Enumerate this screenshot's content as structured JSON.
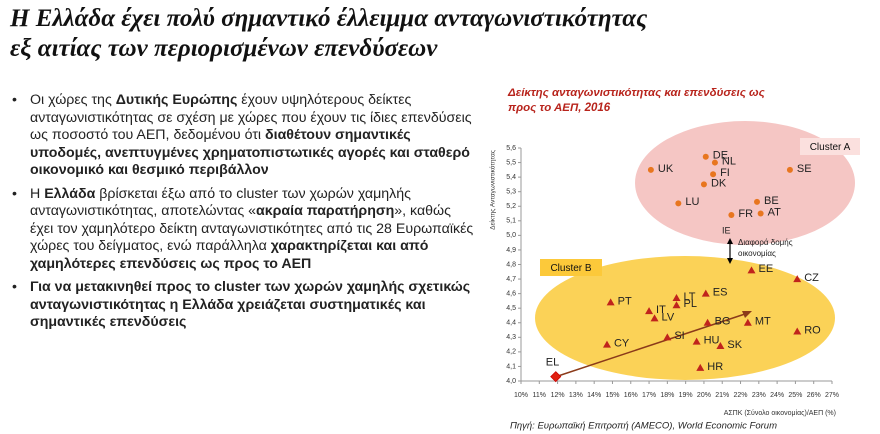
{
  "header": {
    "title": [
      "Η Ελλάδα έχει πολύ σημαντικό έλλειμμα ανταγωνιστικότητας",
      "εξ αιτίας των περιορισμένων επενδύσεων"
    ]
  },
  "bullets": [
    [
      {
        "text": "Οι χώρες της ",
        "bold": false
      },
      {
        "text": "Δυτικής Ευρώπης",
        "bold": true
      },
      {
        "text": " έχουν υψηλότερους δείκτες ανταγωνιστικότητας σε σχέση με χώρες που έχουν τις ίδιες επενδύσεις ως ποσοστό του ΑΕΠ, δεδομένου ότι ",
        "bold": false
      },
      {
        "text": "διαθέτουν σημαντικές υποδομές, ανεπτυγμένες χρηματοπιστωτικές αγορές και σταθερό οικονομικό και θεσμικό περιβάλλον",
        "bold": true
      }
    ],
    [
      {
        "text": "Η ",
        "bold": false
      },
      {
        "text": "Ελλάδα",
        "bold": true
      },
      {
        "text": " βρίσκεται έξω από το cluster των χωρών χαμηλής ανταγωνιστικότητας, αποτελώντας «",
        "bold": false
      },
      {
        "text": "ακραία παρατήρηση",
        "bold": true
      },
      {
        "text": "», καθώς έχει τον χαμηλότερο δείκτη ανταγωνιστικότητες από τις 28 Ευρωπαϊκές χώρες του δείγματος, ενώ παράλληλα ",
        "bold": false
      },
      {
        "text": "χαρακτηρίζεται και από χαμηλότερες επενδύσεις ως προς το ΑΕΠ",
        "bold": true
      }
    ],
    [
      {
        "text": "Για να μετακινηθεί προς το cluster των χωρών χαμηλής σχετικώς ανταγωνιστικότητας η Ελλάδα χρειάζεται συστηματικές και σημαντικές επενδύσεις",
        "bold": true
      }
    ]
  ],
  "chart_data": {
    "type": "scatter",
    "title": "Δείκτης ανταγωνιστικότητας και επενδύσεις ως προς το ΑΕΠ, 2016",
    "x_label": "ΑΣΠΚ (Σύνολο οικονομίας)/ΑΕΠ (%)",
    "y_label": "Δείκτης Ανταγωνιστικότητας",
    "source": "Πηγή: Ευρωπαϊκή Επιτροπή (AMECO), World Economic Forum",
    "annotations": {
      "ie": "IE",
      "gap": [
        "Διαφορά δομής",
        "οικονομίας"
      ]
    },
    "xlim": [
      10,
      27
    ],
    "xticks": [
      {
        "value": 10,
        "label": "10%"
      },
      {
        "value": 11,
        "label": "11%"
      },
      {
        "value": 12,
        "label": "12%"
      },
      {
        "value": 13,
        "label": "13%"
      },
      {
        "value": 14,
        "label": "14%"
      },
      {
        "value": 15,
        "label": "15%"
      },
      {
        "value": 16,
        "label": "16%"
      },
      {
        "value": 17,
        "label": "17%"
      },
      {
        "value": 18,
        "label": "18%"
      },
      {
        "value": 19,
        "label": "19%"
      },
      {
        "value": 20,
        "label": "20%"
      },
      {
        "value": 21,
        "label": "21%"
      },
      {
        "value": 22,
        "label": "22%"
      },
      {
        "value": 23,
        "label": "23%"
      },
      {
        "value": 24,
        "label": "24%"
      },
      {
        "value": 25,
        "label": "25%"
      },
      {
        "value": 26,
        "label": "26%"
      },
      {
        "value": 27,
        "label": "27%"
      }
    ],
    "ylim": [
      4.0,
      5.6
    ],
    "yticks": [
      {
        "value": 4.0,
        "label": "4,0"
      },
      {
        "value": 4.1,
        "label": "4,1"
      },
      {
        "value": 4.2,
        "label": "4,2"
      },
      {
        "value": 4.3,
        "label": "4,3"
      },
      {
        "value": 4.4,
        "label": "4,4"
      },
      {
        "value": 4.5,
        "label": "4,5"
      },
      {
        "value": 4.6,
        "label": "4,6"
      },
      {
        "value": 4.7,
        "label": "4,7"
      },
      {
        "value": 4.8,
        "label": "4,8"
      },
      {
        "value": 4.9,
        "label": "4,9"
      },
      {
        "value": 5.0,
        "label": "5,0"
      },
      {
        "value": 5.1,
        "label": "5,1"
      },
      {
        "value": 5.2,
        "label": "5,2"
      },
      {
        "value": 5.3,
        "label": "5,3"
      },
      {
        "value": 5.4,
        "label": "5,4"
      },
      {
        "value": 5.5,
        "label": "5,5"
      },
      {
        "value": 5.6,
        "label": "5,6"
      }
    ],
    "series": [
      {
        "name": "Cluster A",
        "color": "#e8761f",
        "marker": "circle",
        "labels": [
          "UK",
          "DE",
          "NL",
          "FI",
          "DK",
          "LU",
          "FR",
          "BE",
          "AT",
          "SE"
        ],
        "x": [
          17.1,
          20.1,
          20.6,
          20.5,
          20.0,
          18.6,
          21.5,
          22.9,
          23.1,
          24.7
        ],
        "values": [
          5.45,
          5.54,
          5.5,
          5.42,
          5.35,
          5.22,
          5.14,
          5.23,
          5.15,
          5.45
        ]
      },
      {
        "name": "Cluster B",
        "color": "#c0241c",
        "marker": "triangle",
        "labels": [
          "EE",
          "CZ",
          "LT",
          "ES",
          "PT",
          "IT",
          "PL",
          "LV",
          "BG",
          "MT",
          "RO",
          "CY",
          "SI",
          "HU",
          "SK",
          "HR"
        ],
        "x": [
          22.6,
          25.1,
          18.5,
          20.1,
          14.9,
          17.0,
          18.5,
          17.3,
          20.2,
          22.4,
          25.1,
          14.7,
          18.0,
          19.6,
          20.9,
          19.8
        ],
        "values": [
          4.76,
          4.7,
          4.57,
          4.6,
          4.54,
          4.48,
          4.52,
          4.43,
          4.4,
          4.4,
          4.34,
          4.25,
          4.3,
          4.27,
          4.24,
          4.09
        ]
      },
      {
        "color": "#e02010",
        "marker": "diamond",
        "labels": [
          "EL"
        ],
        "x": [
          11.9
        ],
        "values": [
          4.03
        ]
      }
    ]
  }
}
